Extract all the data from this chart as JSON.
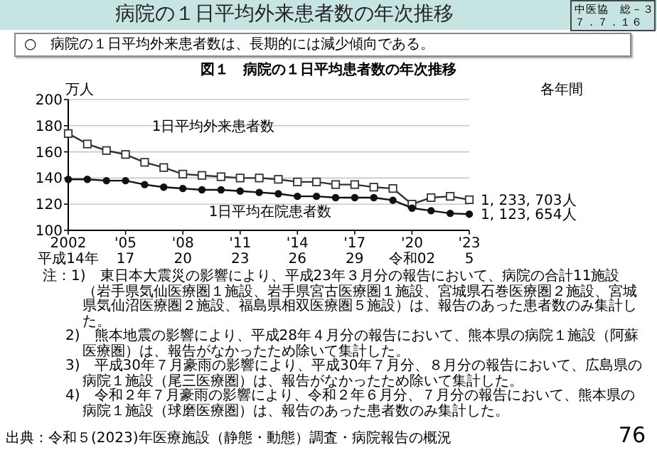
{
  "chart_data": {
    "type": "line",
    "title": "病院の１日平均外来患者数の年次推移",
    "subtitle": "○　病院の１日平均外来患者数は、長期的には減少傾向である。",
    "ylabel": "万人",
    "categories": [
      "2002\n平成14年",
      null,
      null,
      "'05\n17",
      null,
      null,
      "'08\n20",
      null,
      null,
      "'11\n23",
      null,
      null,
      "'14\n26",
      null,
      null,
      "'17\n29",
      null,
      null,
      "'20\n令和02",
      null,
      null,
      "'23\n5"
    ],
    "ylim": [
      100,
      200
    ],
    "yticks": [
      100,
      120,
      140,
      160,
      180,
      200
    ],
    "grid": "y",
    "line_style": "solid",
    "series": [
      {
        "name": "1日平均外来患者数",
        "color": "#333333",
        "marker": "square",
        "values": [
          174,
          166,
          161,
          158,
          152,
          148,
          143,
          142,
          141,
          140,
          140,
          139,
          137,
          137,
          135,
          135,
          133,
          132,
          120,
          125,
          126,
          123.4
        ]
      },
      {
        "name": "1日平均在院患者数",
        "color": "#111111",
        "marker": "circle",
        "values": [
          139,
          139,
          138,
          138,
          135,
          133,
          132,
          131,
          131,
          130,
          129,
          128,
          126,
          126,
          125,
          125,
          125,
          123,
          117,
          115,
          113,
          112.4
        ]
      }
    ],
    "annotations": [
      "中医協　総－３",
      "７．７．１６",
      "図１　病院の１日平均患者数の年次推移",
      "各年間",
      "注：1)　東日本大震災の影響により、平成23年３月分の報告において、病院の合計11施設（岩手県気仙医療圏１施設、岩手県宮古医療圏１施設、宮城県石巻医療圏２施設、宮城県気仙沼医療圏２施設、福島県相双医療圏５施設）は、報告のあった患者数のみ集計した。",
      "2)　熊本地震の影響により、平成28年４月分の報告において、熊本県の病院１施設（阿蘇医療圏）は、報告がなかったため除いて集計した。",
      "3)　平成30年７月豪雨の影響により、平成30年７月分、８月分の報告において、広島県の病院１施設（尾三医療圏）は、報告がなかったため除いて集計した。",
      "4)　令和２年７月豪雨の影響により、令和２年６月分、７月分の報告において、熊本県の病院１施設（球磨医療圏）は、報告のあった患者数のみ集計した。",
      "出典：令和５(2023)年医療施設（静態・動態）調査・病院報告の概況",
      "76",
      "1, 233, 703人",
      "1, 123, 654人"
    ]
  }
}
